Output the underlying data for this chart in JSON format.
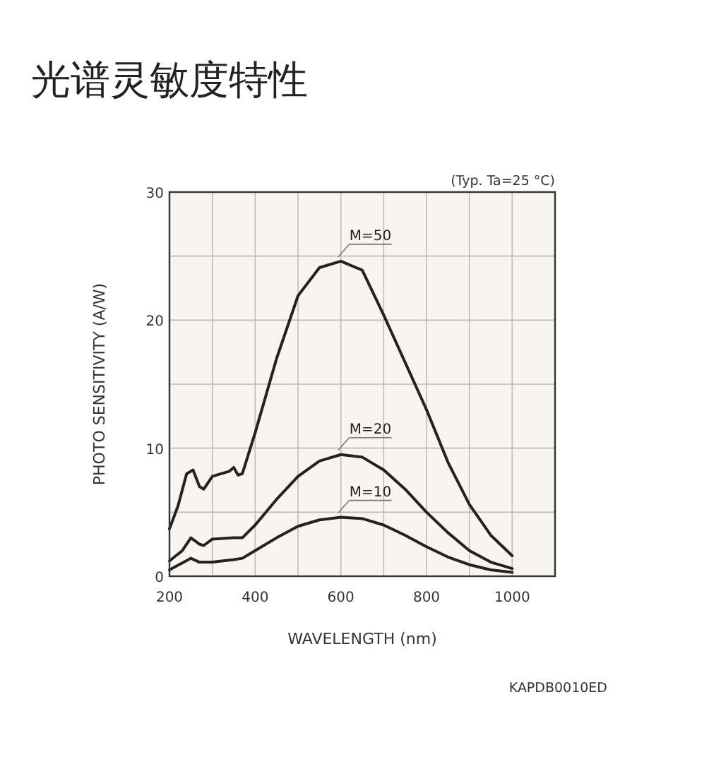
{
  "chart_data": {
    "type": "line",
    "title": "光谱灵敏度特性",
    "xlabel": "WAVELENGTH (nm)",
    "ylabel": "PHOTO SENSITIVITY (A/W)",
    "annotations": [
      "(Typ. Ta=25 °C)",
      "KAPDB0010ED"
    ],
    "xlim": [
      200,
      1100
    ],
    "xticks": [
      200,
      400,
      600,
      800,
      1000
    ],
    "ylim": [
      0,
      30
    ],
    "yticks": [
      0,
      10,
      20,
      30
    ],
    "grid": true,
    "series": [
      {
        "name": "M=50",
        "color": "#222222",
        "x": [
          200,
          220,
          240,
          255,
          270,
          280,
          300,
          320,
          340,
          350,
          360,
          370,
          400,
          450,
          500,
          550,
          600,
          650,
          700,
          750,
          800,
          850,
          900,
          950,
          1000
        ],
        "values": [
          3.7,
          5.5,
          8.0,
          8.3,
          7.0,
          6.8,
          7.8,
          8.0,
          8.2,
          8.5,
          7.9,
          8.0,
          11.2,
          17.0,
          21.9,
          24.1,
          24.6,
          23.9,
          20.4,
          16.7,
          13.0,
          8.9,
          5.6,
          3.2,
          1.6
        ]
      },
      {
        "name": "M=20",
        "color": "#222222",
        "x": [
          200,
          230,
          250,
          270,
          280,
          300,
          350,
          370,
          400,
          450,
          500,
          550,
          600,
          650,
          700,
          750,
          800,
          850,
          900,
          950,
          1000
        ],
        "values": [
          1.2,
          2.0,
          3.0,
          2.5,
          2.4,
          2.9,
          3.0,
          3.0,
          4.0,
          6.0,
          7.8,
          9.0,
          9.5,
          9.3,
          8.3,
          6.8,
          5.0,
          3.4,
          2.0,
          1.1,
          0.6
        ]
      },
      {
        "name": "M=10",
        "color": "#222222",
        "x": [
          200,
          250,
          270,
          300,
          350,
          370,
          400,
          450,
          500,
          550,
          600,
          650,
          700,
          750,
          800,
          850,
          900,
          950,
          1000
        ],
        "values": [
          0.5,
          1.4,
          1.1,
          1.1,
          1.3,
          1.4,
          2.0,
          3.0,
          3.9,
          4.4,
          4.6,
          4.5,
          4.0,
          3.2,
          2.3,
          1.5,
          0.9,
          0.5,
          0.3
        ]
      }
    ]
  }
}
